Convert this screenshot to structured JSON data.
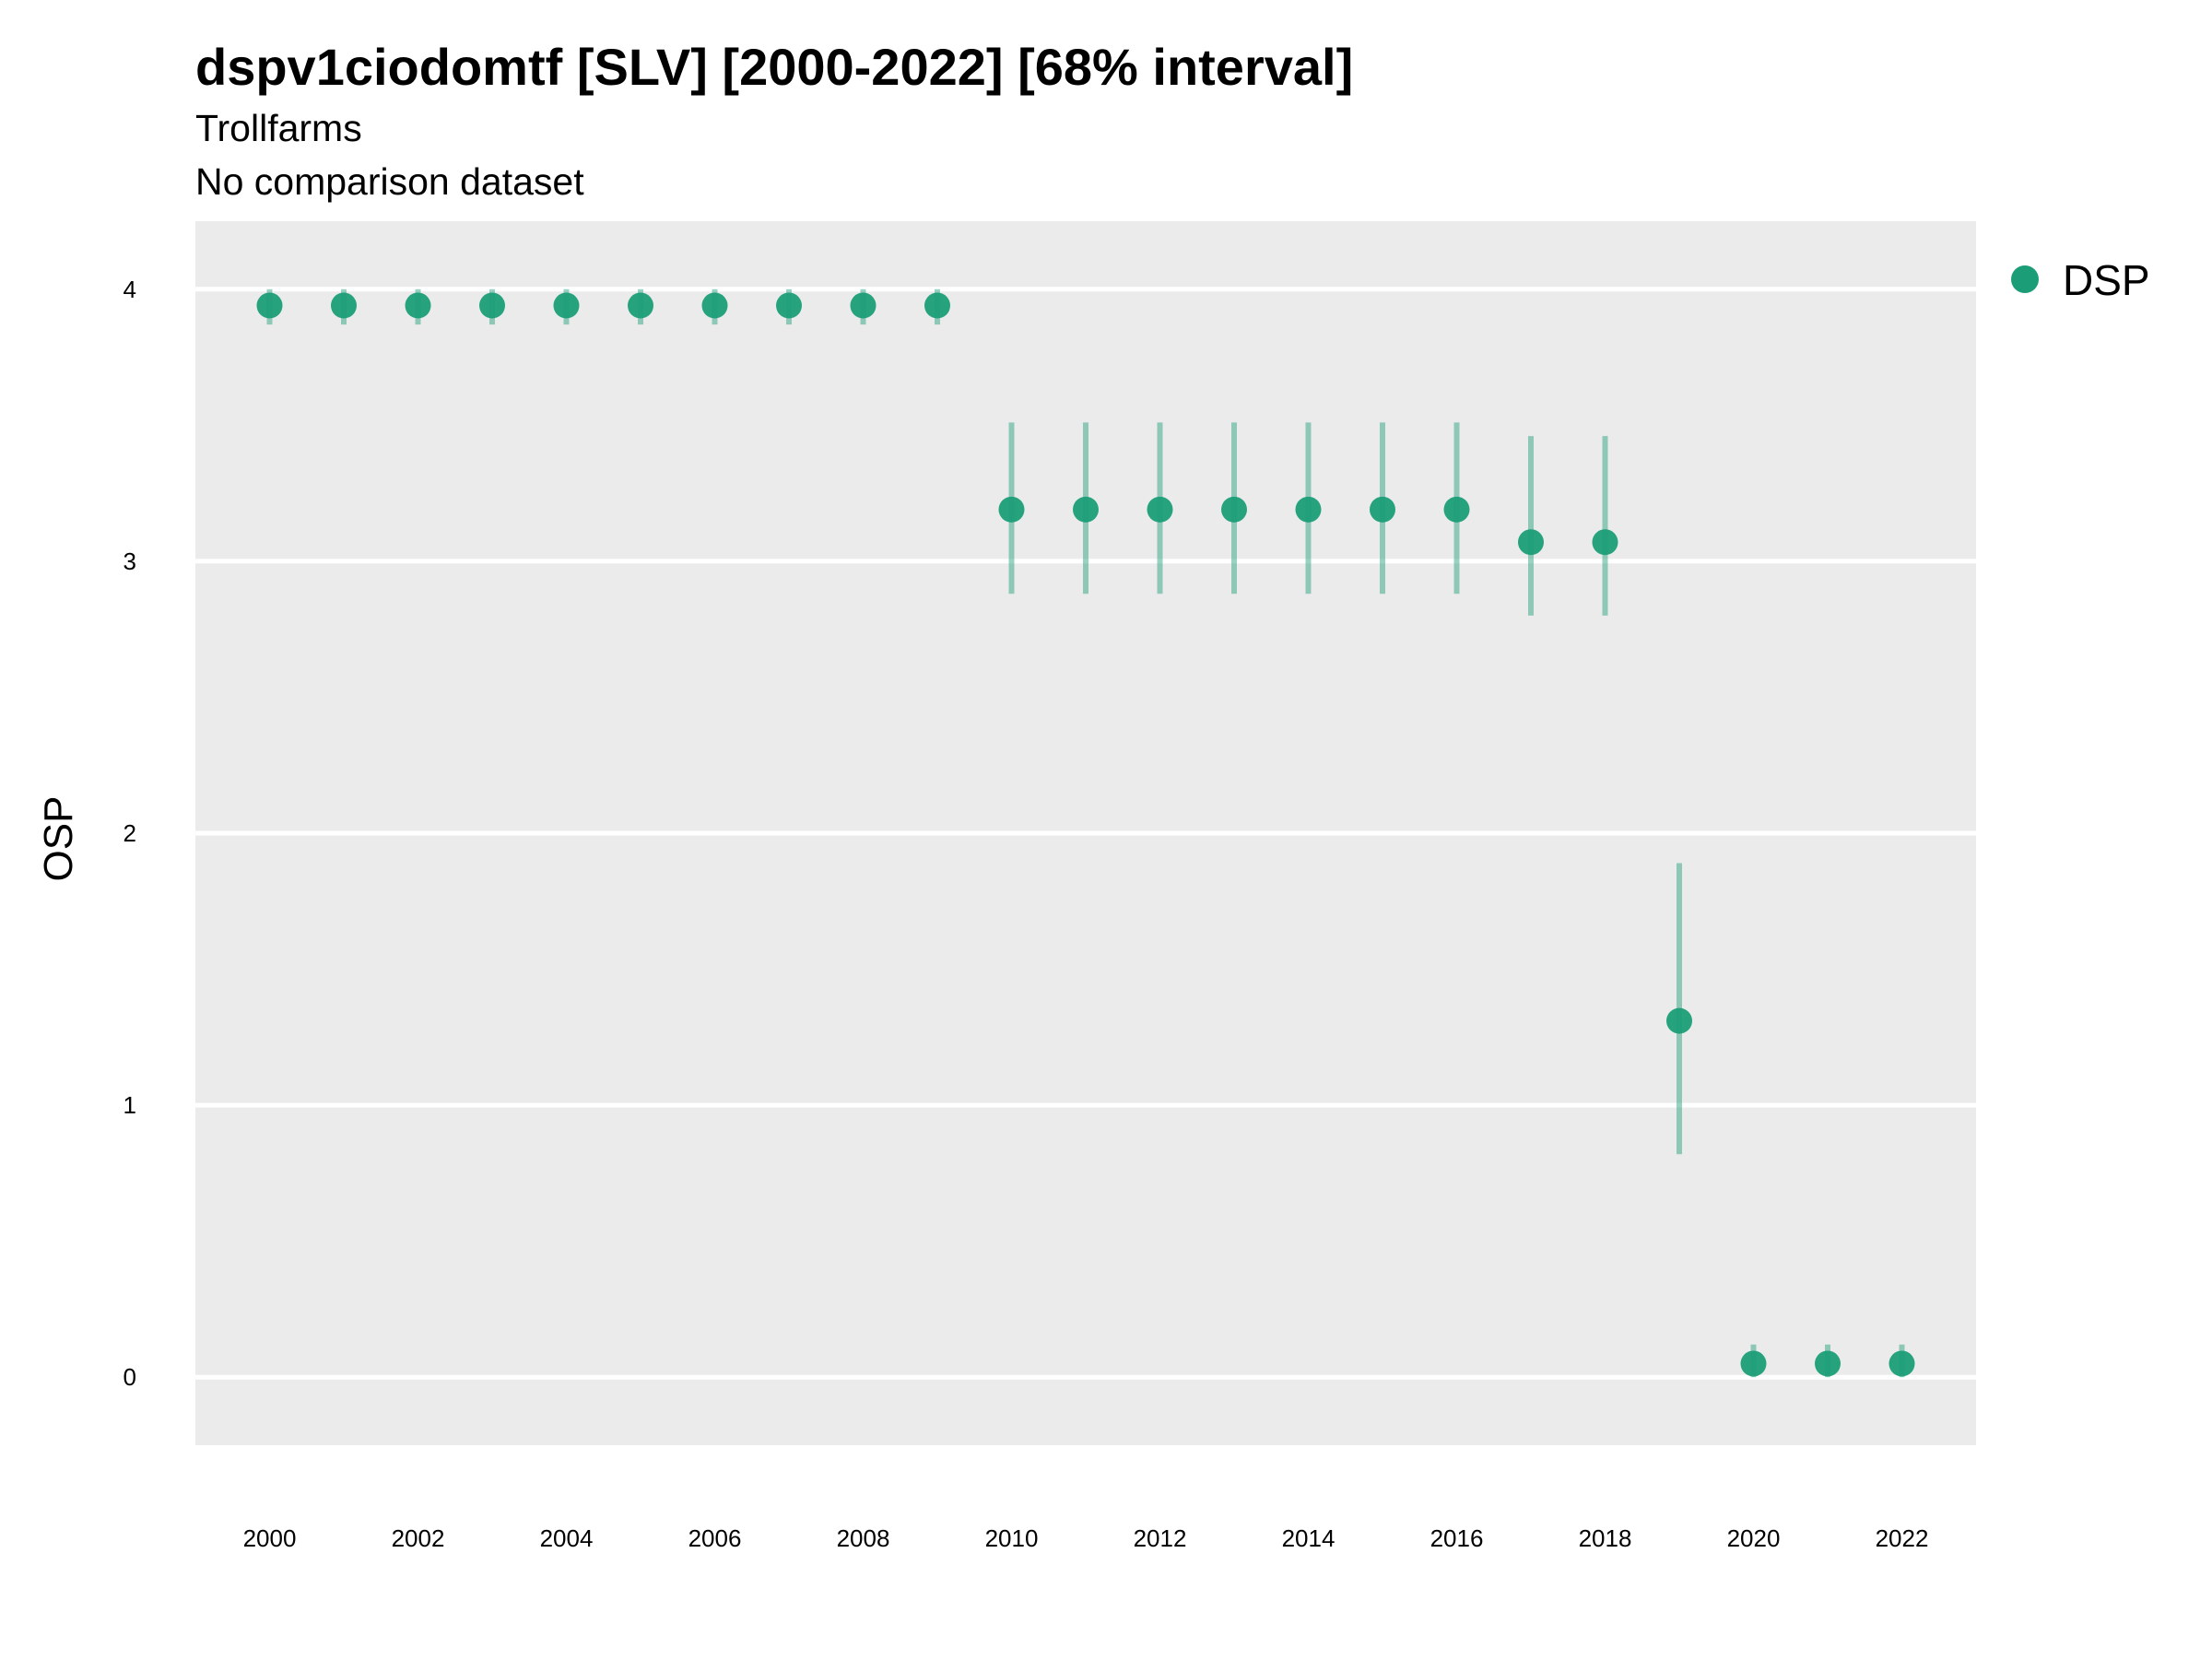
{
  "chart_data": {
    "type": "scatter",
    "title": "dspv1ciodomtf [SLV] [2000-2022] [68% interval]",
    "subtitle": "Trollfarms",
    "caption": "No comparison dataset",
    "ylabel": "OSP",
    "xlabel": "",
    "xlim": [
      1999,
      2023
    ],
    "ylim": [
      -0.25,
      4.25
    ],
    "x_ticks": [
      2000,
      2002,
      2004,
      2006,
      2008,
      2010,
      2012,
      2014,
      2016,
      2018,
      2020,
      2022
    ],
    "y_ticks": [
      0,
      1,
      2,
      3,
      4
    ],
    "grid": true,
    "legend_position": "right",
    "colors": {
      "series": "#1b9e77",
      "panel": "#ebebeb",
      "grid": "#ffffff"
    },
    "series": [
      {
        "name": "DSP",
        "x": [
          2000,
          2001,
          2002,
          2003,
          2004,
          2005,
          2006,
          2007,
          2008,
          2009,
          2010,
          2011,
          2012,
          2013,
          2014,
          2015,
          2016,
          2017,
          2018,
          2019,
          2020,
          2021,
          2022
        ],
        "y": [
          3.94,
          3.94,
          3.94,
          3.94,
          3.94,
          3.94,
          3.94,
          3.94,
          3.94,
          3.94,
          3.19,
          3.19,
          3.19,
          3.19,
          3.19,
          3.19,
          3.19,
          3.07,
          3.07,
          1.31,
          0.05,
          0.05,
          0.05
        ],
        "lower": [
          3.87,
          3.87,
          3.87,
          3.87,
          3.87,
          3.87,
          3.87,
          3.87,
          3.87,
          3.87,
          2.88,
          2.88,
          2.88,
          2.88,
          2.88,
          2.88,
          2.88,
          2.8,
          2.8,
          0.82,
          0.0,
          0.0,
          0.0
        ],
        "upper": [
          4.0,
          4.0,
          4.0,
          4.0,
          4.0,
          4.0,
          4.0,
          4.0,
          4.0,
          4.0,
          3.51,
          3.51,
          3.51,
          3.51,
          3.51,
          3.51,
          3.51,
          3.46,
          3.46,
          1.89,
          0.12,
          0.12,
          0.12
        ]
      }
    ]
  }
}
